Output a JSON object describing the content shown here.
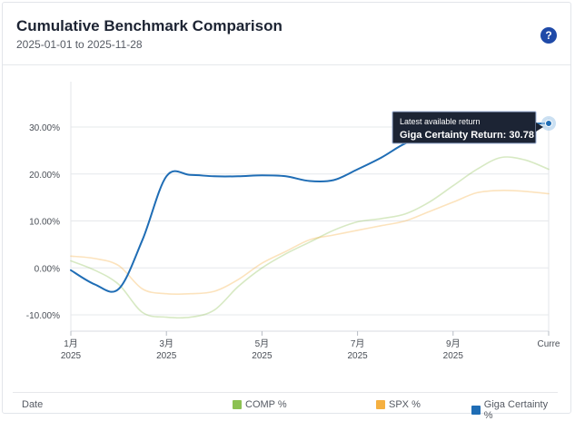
{
  "header": {
    "title": "Cumulative Benchmark Comparison",
    "subtitle": "2025-01-01 to 2025-11-28",
    "help_icon": "question-circle-icon",
    "help_glyph": "?"
  },
  "tooltip": {
    "heading": "Latest available return",
    "text": "Giga Certainty Return: 30.78"
  },
  "legend": {
    "date_label": "Date",
    "items": [
      {
        "label": "COMP %",
        "color": "#8cc152"
      },
      {
        "label": "SPX %",
        "color": "#f5b041"
      },
      {
        "label": "Giga Certainty %",
        "color": "#1f6db5"
      }
    ]
  },
  "chart_data": {
    "type": "line",
    "ylim": [
      -12,
      38
    ],
    "y_ticks": [
      30,
      20,
      10,
      0,
      -10
    ],
    "y_tick_labels": [
      "30.00%",
      "20.00%",
      "10.00%",
      "0.00%",
      "-10.00%"
    ],
    "x_ticks": [
      {
        "top": "1月",
        "bottom": "2025",
        "pos": 0
      },
      {
        "top": "3月",
        "bottom": "2025",
        "pos": 2
      },
      {
        "top": "5月",
        "bottom": "2025",
        "pos": 4
      },
      {
        "top": "7月",
        "bottom": "2025",
        "pos": 6
      },
      {
        "top": "9月",
        "bottom": "2025",
        "pos": 8
      },
      {
        "top": "Curre",
        "bottom": "",
        "pos": 10
      }
    ],
    "x": [
      0,
      0.5,
      1,
      1.5,
      2,
      2.5,
      3,
      3.5,
      4,
      4.5,
      5,
      5.5,
      6,
      6.5,
      7,
      7.5,
      8,
      8.5,
      9,
      9.5,
      10
    ],
    "series": [
      {
        "name": "COMP %",
        "color": "#8cc152",
        "opacity": 0.35,
        "values": [
          1.5,
          -0.5,
          -3.5,
          -9.5,
          -10.5,
          -10.5,
          -9.0,
          -4.0,
          0.0,
          3.0,
          5.5,
          8.0,
          9.8,
          10.5,
          11.5,
          14.0,
          17.5,
          21.0,
          23.5,
          23.0,
          21.0
        ]
      },
      {
        "name": "SPX %",
        "color": "#f5b041",
        "opacity": 0.35,
        "values": [
          2.5,
          2.0,
          0.5,
          -4.5,
          -5.5,
          -5.5,
          -5.0,
          -2.5,
          1.0,
          3.5,
          6.0,
          7.0,
          8.0,
          9.0,
          10.0,
          12.0,
          14.0,
          16.0,
          16.5,
          16.3,
          15.8
        ]
      },
      {
        "name": "Giga Certainty %",
        "color": "#1f6db5",
        "opacity": 1,
        "values": [
          -0.5,
          -3.5,
          -4.5,
          6.0,
          19.5,
          19.8,
          19.5,
          19.5,
          19.7,
          19.5,
          18.5,
          18.7,
          21.0,
          23.5,
          26.5,
          28.0,
          30.0,
          30.4,
          30.6,
          30.7,
          30.78
        ]
      }
    ]
  }
}
